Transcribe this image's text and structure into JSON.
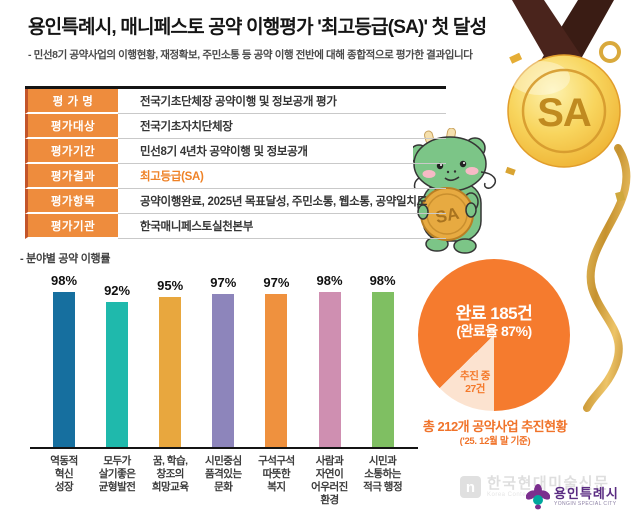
{
  "header": {
    "title": "용인특례시, 매니페스토 공약 이행평가 '최고등급(SA)' 첫 달성",
    "subtitle": "- 민선8기 공약사업의 이행현황, 재정확보, 주민소통 등 공약 이행 전반에 대해 종합적으로 평가한 결과입니다"
  },
  "evaluation_table": {
    "label_bg": "#ee8c3d",
    "highlight_color": "#ef8227",
    "rows": [
      {
        "label": "평 가 명",
        "value": "전국기초단체장 공약이행 및 정보공개 평가",
        "highlight": false
      },
      {
        "label": "평가대상",
        "value": "전국기초자치단체장",
        "highlight": false
      },
      {
        "label": "평가기간",
        "value": "민선8기 4년차 공약이행 및 정보공개",
        "highlight": false
      },
      {
        "label": "평가결과",
        "value": "최고등급(SA)",
        "highlight": true
      },
      {
        "label": "평가항목",
        "value": "공약이행완료, 2025년 목표달성, 주민소통, 웹소통, 공약일치도",
        "highlight": false
      },
      {
        "label": "평가기관",
        "value": "한국매니페스토실천본부",
        "highlight": false
      }
    ]
  },
  "chart_data": [
    {
      "type": "bar",
      "title": "- 분야별 공약 이행률",
      "unit": "%",
      "ylim": [
        0,
        100
      ],
      "grid": false,
      "categories": [
        "역동적 혁신 성장",
        "모두가 살기좋은 균형발전",
        "꿈, 학습, 창조의 희망교육",
        "시민중심 품격있는 문화",
        "구석구석 따뜻한 복지",
        "사람과 자연이 어우러진 환경",
        "시민과 소통하는 적극 행정"
      ],
      "category_lines": [
        [
          "역동적",
          "혁신",
          "성장"
        ],
        [
          "모두가",
          "살기좋은",
          "균형발전"
        ],
        [
          "꿈, 학습,",
          "창조의",
          "희망교육"
        ],
        [
          "시민중심",
          "품격있는",
          "문화"
        ],
        [
          "구석구석",
          "따뜻한",
          "복지"
        ],
        [
          "사람과",
          "자연이",
          "어우러진",
          "환경"
        ],
        [
          "시민과",
          "소통하는",
          "적극 행정"
        ]
      ],
      "values": [
        98,
        92,
        95,
        97,
        97,
        98,
        98
      ],
      "value_labels": [
        "98%",
        "92%",
        "95%",
        "97%",
        "97%",
        "98%",
        "98%"
      ],
      "colors": [
        "#166f9f",
        "#1fb9ac",
        "#e8a73e",
        "#8d85bb",
        "#ef913e",
        "#cf8fb1",
        "#7fbf62"
      ]
    },
    {
      "type": "pie",
      "title": "총 212개 공약사업 추진현황",
      "subtitle": "('25. 12월 말 기준)",
      "total": 212,
      "slices": [
        {
          "label": "완료",
          "count": 185,
          "display": "완료 185건",
          "sub_display": "(완료율 87%)",
          "color": "#f57b2e"
        },
        {
          "label": "추진 중",
          "count": 27,
          "display": "추진 중",
          "sub_display": "27건",
          "color": "#fce3d0"
        }
      ],
      "legend_position": "inside"
    }
  ],
  "medal": {
    "grade": "SA",
    "ribbon_color": "#46231b"
  },
  "mascot": {
    "coin_text": "SA"
  },
  "logos": {
    "watermark": {
      "icon": "n",
      "text": "한국현대미술신문",
      "subtext": "Korea Conte"
    },
    "city": {
      "text": "용인특례시",
      "subtext": "YONGIN SPECIAL CITY"
    }
  }
}
